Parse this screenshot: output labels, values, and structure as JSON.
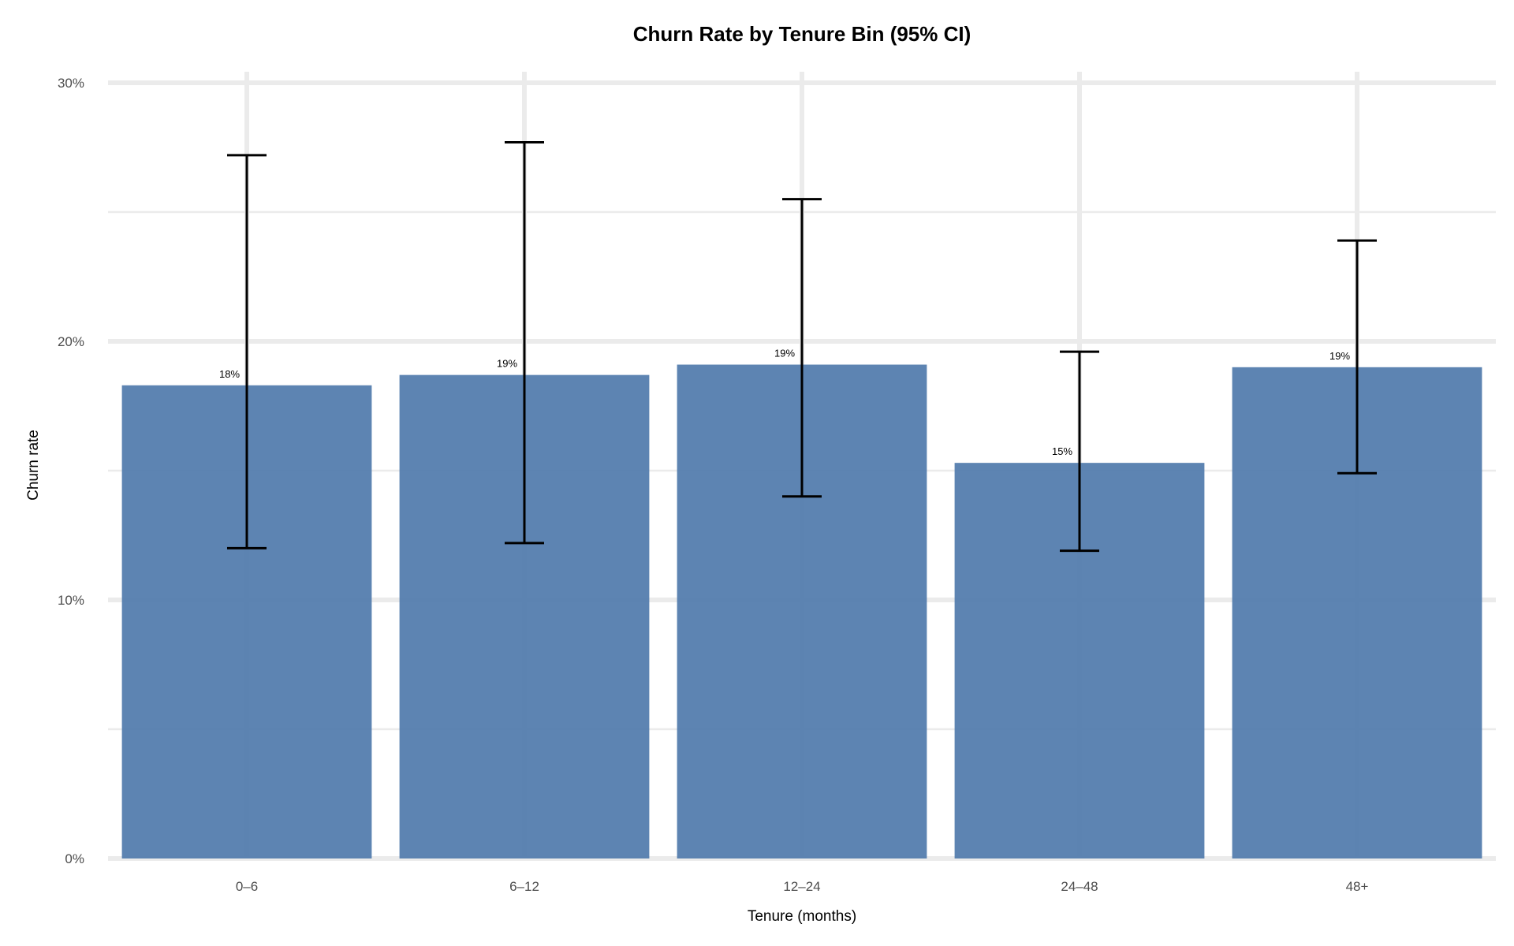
{
  "chart_data": {
    "type": "bar",
    "title": "Churn Rate by Tenure Bin (95% CI)",
    "xlabel": "Tenure (months)",
    "ylabel": "Churn rate",
    "categories": [
      "0–6",
      "6–12",
      "12–24",
      "24–48",
      "48+"
    ],
    "values": [
      0.183,
      0.187,
      0.191,
      0.153,
      0.19
    ],
    "value_labels": [
      "18%",
      "19%",
      "19%",
      "15%",
      "19%"
    ],
    "ci_lower": [
      0.12,
      0.122,
      0.14,
      0.119,
      0.149
    ],
    "ci_upper": [
      0.272,
      0.277,
      0.255,
      0.196,
      0.239
    ],
    "ylim": [
      0,
      0.3
    ],
    "yticks": [
      0,
      0.1,
      0.2,
      0.3
    ],
    "ytick_labels": [
      "0%",
      "10%",
      "20%",
      "30%"
    ],
    "grid": true,
    "legend": "none",
    "bar_color": "#4f79ab",
    "errorbar_color": "#000000"
  }
}
